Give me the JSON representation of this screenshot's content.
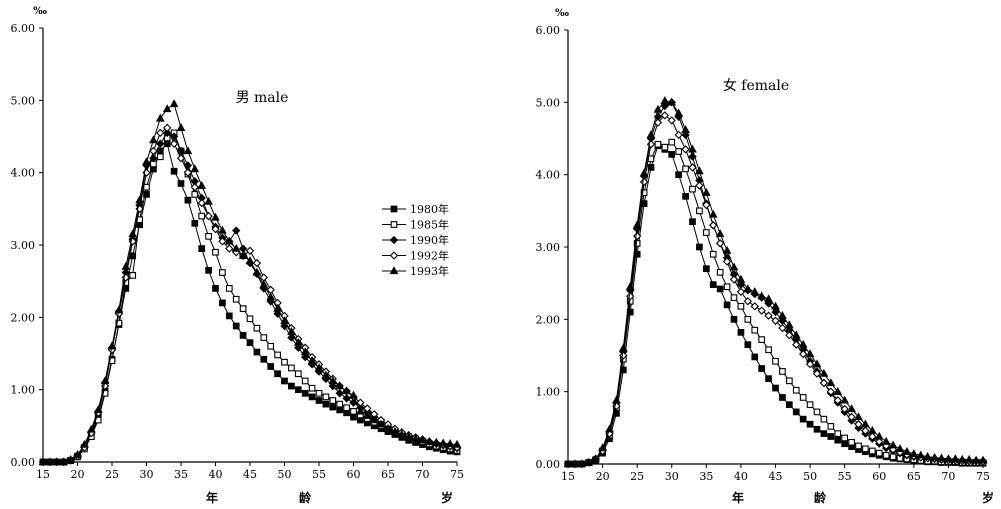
{
  "chart_data": [
    {
      "type": "line",
      "title": "男 male",
      "unit": "‰",
      "xlabel": "",
      "xlabel_parts": [
        "年",
        "龄",
        "岁"
      ],
      "xticks": [
        "15",
        "20",
        "25",
        "30",
        "35",
        "40",
        "45",
        "50",
        "55",
        "60",
        "65",
        "70",
        "75"
      ],
      "yticks": [
        "0.00",
        "1.00",
        "2.00",
        "3.00",
        "4.00",
        "5.00",
        "6.00"
      ],
      "xlim": [
        15,
        75
      ],
      "ylim": [
        0,
        6
      ],
      "legend_position": "right",
      "x": [
        15,
        16,
        17,
        18,
        19,
        20,
        21,
        22,
        23,
        24,
        25,
        26,
        27,
        28,
        29,
        30,
        31,
        32,
        33,
        34,
        35,
        36,
        37,
        38,
        39,
        40,
        41,
        42,
        43,
        44,
        45,
        46,
        47,
        48,
        49,
        50,
        51,
        52,
        53,
        54,
        55,
        56,
        57,
        58,
        59,
        60,
        61,
        62,
        63,
        64,
        65,
        66,
        67,
        68,
        69,
        70,
        71,
        72,
        73,
        74,
        75
      ],
      "series": [
        {
          "name": "1980年",
          "marker": "square-filled",
          "values": [
            0.0,
            0.0,
            0.0,
            0.0,
            0.02,
            0.08,
            0.2,
            0.38,
            0.62,
            0.98,
            1.42,
            1.9,
            2.4,
            2.85,
            3.28,
            3.7,
            4.05,
            4.3,
            4.4,
            4.02,
            3.85,
            3.62,
            3.3,
            2.95,
            2.65,
            2.4,
            2.2,
            2.02,
            1.88,
            1.75,
            1.65,
            1.52,
            1.42,
            1.32,
            1.22,
            1.12,
            1.05,
            1.0,
            0.95,
            0.9,
            0.85,
            0.8,
            0.76,
            0.72,
            0.68,
            0.62,
            0.58,
            0.54,
            0.5,
            0.46,
            0.42,
            0.38,
            0.34,
            0.3,
            0.27,
            0.24,
            0.21,
            0.19,
            0.17,
            0.15,
            0.14
          ]
        },
        {
          "name": "1985年",
          "marker": "square-open",
          "values": [
            0.0,
            0.0,
            0.0,
            0.0,
            0.02,
            0.07,
            0.18,
            0.35,
            0.58,
            0.95,
            1.4,
            1.92,
            2.48,
            2.58,
            3.35,
            3.8,
            4.12,
            4.22,
            4.48,
            4.55,
            4.3,
            3.98,
            3.7,
            3.4,
            3.12,
            2.9,
            2.62,
            2.4,
            2.25,
            2.12,
            1.98,
            1.85,
            1.72,
            1.6,
            1.48,
            1.38,
            1.3,
            1.22,
            1.12,
            1.02,
            0.95,
            0.9,
            0.85,
            0.8,
            0.75,
            0.7,
            0.65,
            0.6,
            0.55,
            0.5,
            0.45,
            0.42,
            0.38,
            0.35,
            0.32,
            0.28,
            0.25,
            0.22,
            0.2,
            0.18,
            0.16
          ]
        },
        {
          "name": "1990年",
          "marker": "diamond-filled",
          "values": [
            0.0,
            0.0,
            0.0,
            0.0,
            0.03,
            0.09,
            0.22,
            0.42,
            0.7,
            1.1,
            1.58,
            2.08,
            2.62,
            3.08,
            3.55,
            4.1,
            4.2,
            4.4,
            4.55,
            4.5,
            4.3,
            4.1,
            3.88,
            3.65,
            3.4,
            3.25,
            3.1,
            3.05,
            3.2,
            2.95,
            2.75,
            2.6,
            2.4,
            2.22,
            2.05,
            1.88,
            1.72,
            1.58,
            1.45,
            1.35,
            1.25,
            1.15,
            1.05,
            0.95,
            0.88,
            0.82,
            0.75,
            0.68,
            0.62,
            0.55,
            0.48,
            0.44,
            0.4,
            0.37,
            0.34,
            0.31,
            0.28,
            0.25,
            0.23,
            0.21,
            0.19
          ]
        },
        {
          "name": "1992年",
          "marker": "diamond-open",
          "values": [
            0.0,
            0.0,
            0.0,
            0.0,
            0.02,
            0.08,
            0.2,
            0.4,
            0.68,
            1.05,
            1.55,
            2.05,
            2.55,
            3.05,
            3.5,
            4.0,
            4.3,
            4.55,
            4.62,
            4.4,
            4.2,
            4.0,
            3.8,
            3.58,
            3.4,
            3.22,
            3.05,
            2.95,
            2.9,
            2.85,
            2.92,
            2.75,
            2.55,
            2.38,
            2.2,
            2.02,
            1.85,
            1.7,
            1.58,
            1.45,
            1.35,
            1.25,
            1.15,
            1.05,
            0.98,
            0.9,
            0.82,
            0.74,
            0.66,
            0.58,
            0.52,
            0.46,
            0.41,
            0.37,
            0.34,
            0.31,
            0.28,
            0.26,
            0.24,
            0.22,
            0.2
          ]
        },
        {
          "name": "1993年",
          "marker": "triangle-filled",
          "values": [
            0.0,
            0.0,
            0.0,
            0.0,
            0.03,
            0.1,
            0.24,
            0.45,
            0.72,
            1.12,
            1.6,
            2.1,
            2.7,
            3.15,
            3.62,
            4.15,
            4.45,
            4.75,
            4.88,
            4.95,
            4.62,
            4.3,
            4.05,
            3.82,
            3.6,
            3.38,
            3.2,
            3.05,
            2.95,
            2.85,
            2.78,
            2.62,
            2.45,
            2.28,
            2.12,
            1.95,
            1.8,
            1.65,
            1.52,
            1.4,
            1.3,
            1.2,
            1.12,
            1.05,
            0.98,
            0.92,
            0.7,
            0.64,
            0.58,
            0.52,
            0.46,
            0.42,
            0.38,
            0.35,
            0.32,
            0.3,
            0.28,
            0.27,
            0.26,
            0.25,
            0.24
          ]
        }
      ]
    },
    {
      "type": "line",
      "title": "女 female",
      "unit": "‰",
      "xlabel": "",
      "xlabel_parts": [
        "年",
        "龄",
        "岁"
      ],
      "xticks": [
        "15",
        "20",
        "25",
        "30",
        "35",
        "40",
        "45",
        "50",
        "55",
        "60",
        "65",
        "70",
        "75"
      ],
      "yticks": [
        "0.00",
        "1.00",
        "2.00",
        "3.00",
        "4.00",
        "5.00",
        "6.00"
      ],
      "xlim": [
        15,
        75
      ],
      "ylim": [
        0,
        6
      ],
      "x": [
        15,
        16,
        17,
        18,
        19,
        20,
        21,
        22,
        23,
        24,
        25,
        26,
        27,
        28,
        29,
        30,
        31,
        32,
        33,
        34,
        35,
        36,
        37,
        38,
        39,
        40,
        41,
        42,
        43,
        44,
        45,
        46,
        47,
        48,
        49,
        50,
        51,
        52,
        53,
        54,
        55,
        56,
        57,
        58,
        59,
        60,
        61,
        62,
        63,
        64,
        65,
        66,
        67,
        68,
        69,
        70,
        71,
        72,
        73,
        74,
        75
      ],
      "series": [
        {
          "name": "1980年",
          "marker": "square-filled",
          "values": [
            0.0,
            0.0,
            0.0,
            0.02,
            0.05,
            0.15,
            0.35,
            0.7,
            1.3,
            2.1,
            2.9,
            3.6,
            4.1,
            4.4,
            4.35,
            4.28,
            4.0,
            3.7,
            3.35,
            3.0,
            2.7,
            2.48,
            2.42,
            2.2,
            2.0,
            1.82,
            1.65,
            1.48,
            1.32,
            1.18,
            1.05,
            0.92,
            0.82,
            0.72,
            0.62,
            0.55,
            0.48,
            0.42,
            0.38,
            0.33,
            0.28,
            0.24,
            0.2,
            0.17,
            0.14,
            0.12,
            0.1,
            0.08,
            0.07,
            0.06,
            0.05,
            0.04,
            0.03,
            0.03,
            0.02,
            0.02,
            0.02,
            0.01,
            0.01,
            0.01,
            0.01
          ]
        },
        {
          "name": "1985年",
          "marker": "square-open",
          "values": [
            0.0,
            0.0,
            0.0,
            0.02,
            0.06,
            0.18,
            0.4,
            0.78,
            1.45,
            2.25,
            3.05,
            3.75,
            4.22,
            4.42,
            4.38,
            4.45,
            4.32,
            4.08,
            3.8,
            3.5,
            3.2,
            2.9,
            2.65,
            2.45,
            2.3,
            2.18,
            2.0,
            1.85,
            1.72,
            1.58,
            1.42,
            1.28,
            1.15,
            1.02,
            0.92,
            0.82,
            0.72,
            0.62,
            0.52,
            0.42,
            0.36,
            0.3,
            0.25,
            0.21,
            0.18,
            0.15,
            0.12,
            0.1,
            0.08,
            0.07,
            0.06,
            0.05,
            0.04,
            0.04,
            0.03,
            0.03,
            0.03,
            0.02,
            0.02,
            0.02,
            0.02
          ]
        },
        {
          "name": "1990年",
          "marker": "diamond-filled",
          "values": [
            0.0,
            0.0,
            0.0,
            0.02,
            0.07,
            0.2,
            0.45,
            0.85,
            1.55,
            2.4,
            3.25,
            3.98,
            4.5,
            4.8,
            4.95,
            5.0,
            4.8,
            4.55,
            4.25,
            3.92,
            3.6,
            3.3,
            3.05,
            2.85,
            2.62,
            2.48,
            2.4,
            2.35,
            2.3,
            2.22,
            2.1,
            1.98,
            1.85,
            1.72,
            1.58,
            1.42,
            1.28,
            1.12,
            0.98,
            0.85,
            0.72,
            0.6,
            0.5,
            0.42,
            0.35,
            0.28,
            0.22,
            0.18,
            0.15,
            0.12,
            0.1,
            0.09,
            0.08,
            0.07,
            0.06,
            0.06,
            0.05,
            0.05,
            0.04,
            0.04,
            0.04
          ]
        },
        {
          "name": "1992年",
          "marker": "diamond-open",
          "values": [
            0.0,
            0.0,
            0.0,
            0.02,
            0.06,
            0.18,
            0.42,
            0.8,
            1.5,
            2.32,
            3.15,
            3.9,
            4.42,
            4.72,
            4.82,
            4.75,
            4.55,
            4.35,
            4.1,
            3.85,
            3.58,
            3.3,
            3.05,
            2.8,
            2.55,
            2.38,
            2.25,
            2.18,
            2.12,
            2.05,
            1.98,
            1.88,
            1.78,
            1.65,
            1.52,
            1.38,
            1.25,
            1.12,
            1.0,
            0.88,
            0.76,
            0.65,
            0.55,
            0.46,
            0.38,
            0.31,
            0.25,
            0.2,
            0.16,
            0.13,
            0.11,
            0.09,
            0.08,
            0.07,
            0.06,
            0.05,
            0.05,
            0.04,
            0.04,
            0.04,
            0.03
          ]
        },
        {
          "name": "1993年",
          "marker": "triangle-filled",
          "values": [
            0.0,
            0.0,
            0.0,
            0.02,
            0.07,
            0.22,
            0.48,
            0.88,
            1.6,
            2.45,
            3.3,
            4.02,
            4.55,
            4.9,
            5.02,
            5.0,
            4.85,
            4.62,
            4.35,
            4.05,
            3.75,
            3.45,
            3.18,
            2.95,
            2.72,
            2.55,
            2.42,
            2.38,
            2.32,
            2.28,
            2.18,
            2.05,
            1.92,
            1.78,
            1.65,
            1.52,
            1.38,
            1.25,
            1.12,
            1.0,
            0.88,
            0.76,
            0.65,
            0.55,
            0.46,
            0.38,
            0.31,
            0.26,
            0.21,
            0.17,
            0.14,
            0.12,
            0.1,
            0.09,
            0.08,
            0.07,
            0.07,
            0.06,
            0.06,
            0.05,
            0.05
          ]
        }
      ]
    }
  ]
}
